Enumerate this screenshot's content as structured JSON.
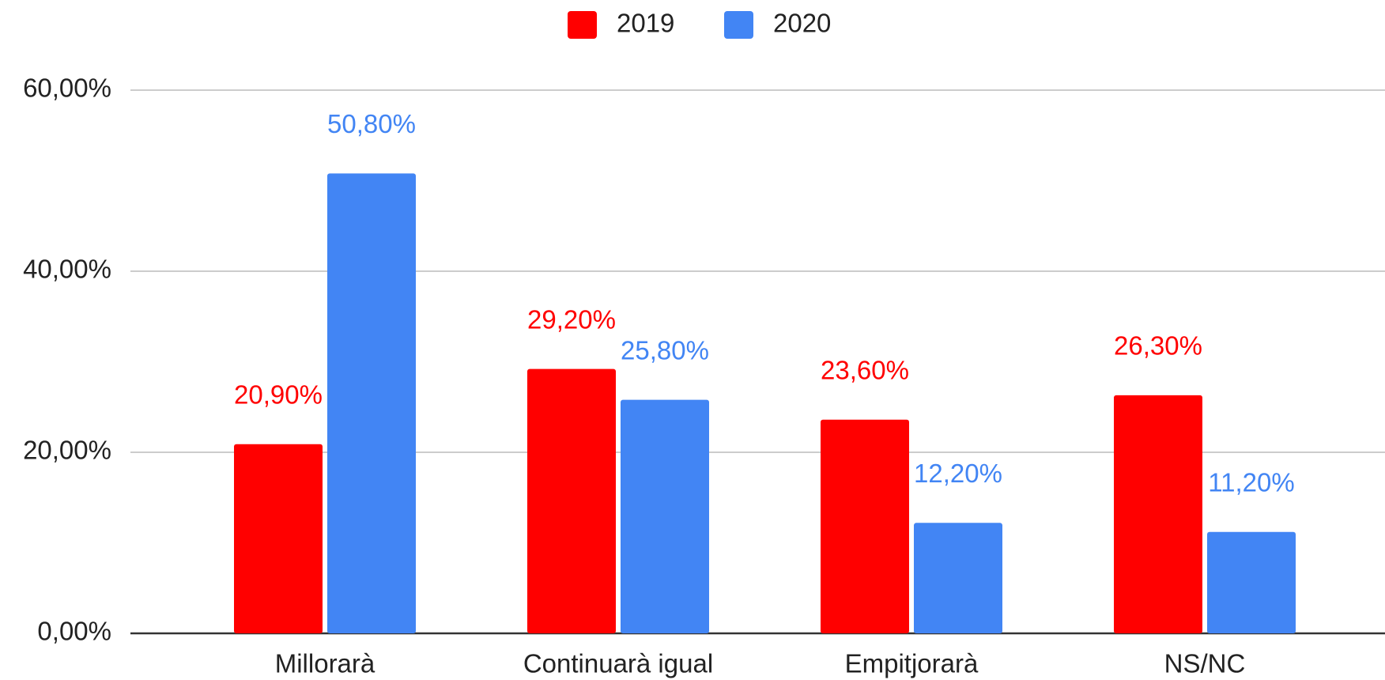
{
  "chart_data": {
    "type": "bar",
    "categories": [
      "Millorarà",
      "Continuarà igual",
      "Empitjorarà",
      "NS/NC"
    ],
    "series": [
      {
        "name": "2019",
        "color": "#ff0000",
        "values": [
          20.9,
          29.2,
          23.6,
          26.3
        ],
        "value_labels": [
          "20,90%",
          "29,20%",
          "23,60%",
          "26,30%"
        ]
      },
      {
        "name": "2020",
        "color": "#4285f4",
        "values": [
          50.8,
          25.8,
          12.2,
          11.2
        ],
        "value_labels": [
          "50,80%",
          "25,80%",
          "12,20%",
          "11,20%"
        ]
      }
    ],
    "ylim": [
      0,
      60
    ],
    "yticks": [
      {
        "value": 0,
        "label": "0,00%"
      },
      {
        "value": 20,
        "label": "20,00%"
      },
      {
        "value": 40,
        "label": "40,00%"
      },
      {
        "value": 60,
        "label": "60,00%"
      }
    ],
    "grid": true,
    "legend": "top"
  }
}
